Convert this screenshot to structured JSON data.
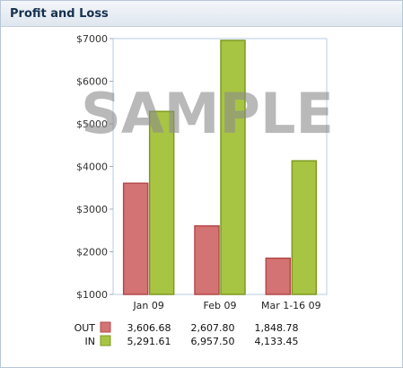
{
  "panel": {
    "title": "Profit and Loss"
  },
  "watermark": "SAMPLE",
  "chart_data": {
    "type": "bar",
    "title": "",
    "xlabel": "",
    "ylabel": "",
    "categories": [
      "Jan 09",
      "Feb 09",
      "Mar 1-16 09"
    ],
    "ylim": [
      1000,
      7000
    ],
    "yticks": [
      1000,
      2000,
      3000,
      4000,
      5000,
      6000,
      7000
    ],
    "ytick_labels": [
      "$1000",
      "$2000",
      "$3000",
      "$4000",
      "$5000",
      "$6000",
      "$7000"
    ],
    "grid": false,
    "series": [
      {
        "name": "OUT",
        "values": [
          3606.68,
          2607.8,
          1848.78
        ],
        "labels": [
          "3,606.68",
          "2,607.80",
          "1,848.78"
        ],
        "fill": "#d47373",
        "stroke": "#b34a4a"
      },
      {
        "name": "IN",
        "values": [
          5291.61,
          6957.5,
          4133.45
        ],
        "labels": [
          "5,291.61",
          "6,957.50",
          "4,133.45"
        ],
        "fill": "#a8c443",
        "stroke": "#7f9a22"
      }
    ]
  }
}
